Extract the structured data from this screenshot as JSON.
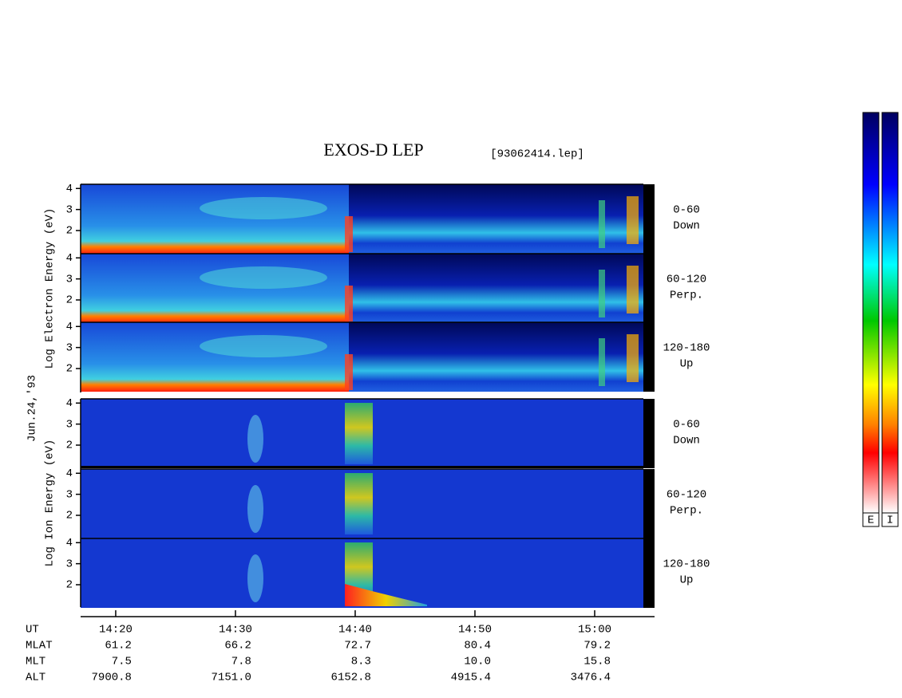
{
  "chart_data": {
    "type": "spectrogram",
    "title": "EXOS-D LEP",
    "subtitle": "[93062414.lep]",
    "date_label": "Jun.24,'93",
    "groups": [
      {
        "ylabel": "Log Electron Energy (eV)",
        "panels": [
          {
            "label": "0-60",
            "sublabel": "Down"
          },
          {
            "label": "60-120",
            "sublabel": "Perp."
          },
          {
            "label": "120-180",
            "sublabel": "Up"
          }
        ]
      },
      {
        "ylabel": "Log Ion Energy (eV)",
        "panels": [
          {
            "label": "0-60",
            "sublabel": "Down"
          },
          {
            "label": "60-120",
            "sublabel": "Perp."
          },
          {
            "label": "120-180",
            "sublabel": "Up"
          }
        ]
      }
    ],
    "ylim": [
      0.9,
      4.2
    ],
    "yticks": [
      2,
      3,
      4
    ],
    "xlim": [
      17.07,
      65
    ],
    "xticks": [
      {
        "value": 20,
        "label": "14:20"
      },
      {
        "value": 30,
        "label": "14:30"
      },
      {
        "value": 40,
        "label": "14:40"
      },
      {
        "value": 50,
        "label": "14:50"
      },
      {
        "value": 60,
        "label": "15:00"
      }
    ],
    "ephemeris": {
      "labels": [
        "UT",
        "MLAT",
        "MLT",
        "ALT"
      ],
      "rows": [
        [
          "61.2",
          "66.2",
          "72.7",
          "80.4",
          "79.2"
        ],
        [
          "7.5",
          "7.8",
          "8.3",
          "10.0",
          "15.8"
        ],
        [
          "7900.8",
          "7151.0",
          "6152.8",
          "4915.4",
          "3476.4"
        ]
      ]
    },
    "colorbar_labels": [
      "E",
      "I"
    ]
  }
}
